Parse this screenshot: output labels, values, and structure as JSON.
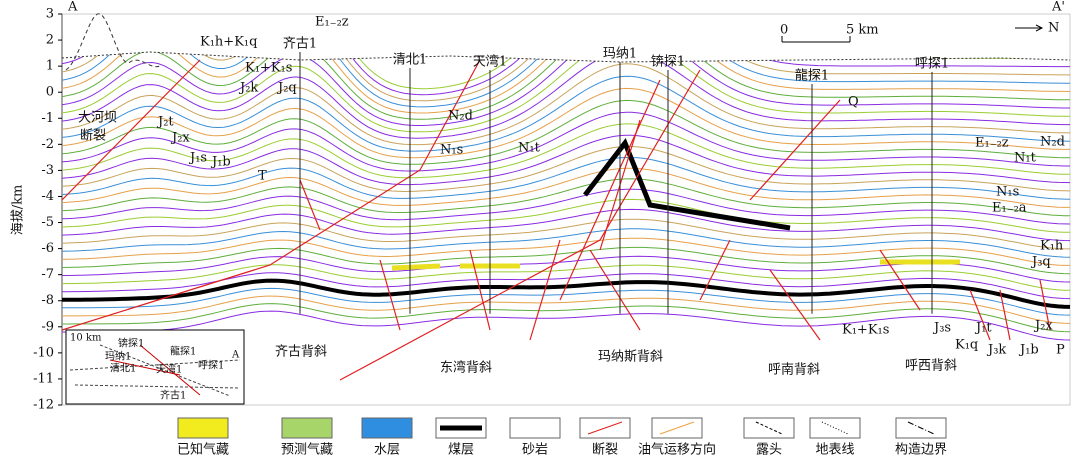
{
  "axis": {
    "label": "海拔/km",
    "ticks": [
      3,
      2,
      1,
      0,
      -1,
      -2,
      -3,
      -4,
      -5,
      -6,
      -7,
      -8,
      -9,
      -10,
      -11,
      -12
    ]
  },
  "markers": {
    "start": "A",
    "end": "A'",
    "north": "N"
  },
  "scale": [
    "0",
    "5 km"
  ],
  "wells": [
    "齐古1",
    "清北1",
    "天湾1",
    "玛纳1",
    "锛探1",
    "龍探1",
    "呼探1"
  ],
  "formations": [
    "K₁h+K₁q",
    "E₁₋₂z",
    "K₁+K₁s",
    "J₂k",
    "J₂q",
    "J₂t",
    "J₂x",
    "J₁s",
    "J₁b",
    "T",
    "N₂d",
    "N₁s",
    "N₁t",
    "Q",
    "E₁₋₂z",
    "N₂d",
    "N₁t",
    "N₁s",
    "E₁₋₂a",
    "K₁h",
    "J₃q",
    "K₁+K₁s",
    "J₃s",
    "J₁t",
    "J₂x",
    "K₁q",
    "J₃k",
    "J₁b",
    "P"
  ],
  "faults": [
    "大河坝",
    "断裂"
  ],
  "structures": [
    "齐古背斜",
    "东湾背斜",
    "玛纳斯背斜",
    "呼南背斜",
    "呼西背斜"
  ],
  "inset": [
    "10 km",
    "锛探1",
    "玛纳1",
    "龍探1",
    "清北1",
    "天湾1",
    "呼探1",
    "齐古1",
    "A"
  ],
  "legend": [
    "已知气藏",
    "预测气藏",
    "水层",
    "煤层",
    "砂岩",
    "断裂",
    "油气运移方向",
    "露头",
    "地表线",
    "构造边界"
  ]
}
